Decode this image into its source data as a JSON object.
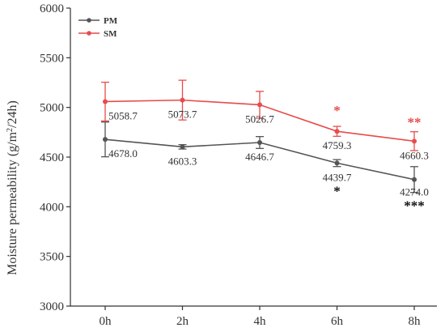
{
  "chart_data": {
    "type": "line",
    "categories": [
      "0h",
      "2h",
      "4h",
      "6h",
      "8h"
    ],
    "ylabel": "Moisture permeability (g/m²/24h)",
    "ylim": [
      3000,
      6000
    ],
    "yticks": [
      3000,
      3500,
      4000,
      4500,
      5000,
      5500,
      6000
    ],
    "legend_position": "top-left",
    "series": [
      {
        "name": "PM",
        "color": "#555555",
        "values": [
          4678.0,
          4603.3,
          4646.7,
          4439.7,
          4274.0
        ],
        "labels": [
          "4678.0",
          "4603.3",
          "4646.7",
          "4439.7",
          "4274.0"
        ],
        "errors": [
          175,
          22,
          60,
          35,
          130
        ],
        "significance": [
          "",
          "",
          "",
          "*",
          "***"
        ]
      },
      {
        "name": "SM",
        "color": "#e74c4c",
        "values": [
          5058.7,
          5073.7,
          5026.7,
          4759.3,
          4660.3
        ],
        "labels": [
          "5058.7",
          "5073.7",
          "5026.7",
          "4759.3",
          "4660.3"
        ],
        "errors": [
          195,
          200,
          135,
          50,
          95
        ],
        "significance": [
          "",
          "",
          "",
          "*",
          "**"
        ]
      }
    ]
  }
}
